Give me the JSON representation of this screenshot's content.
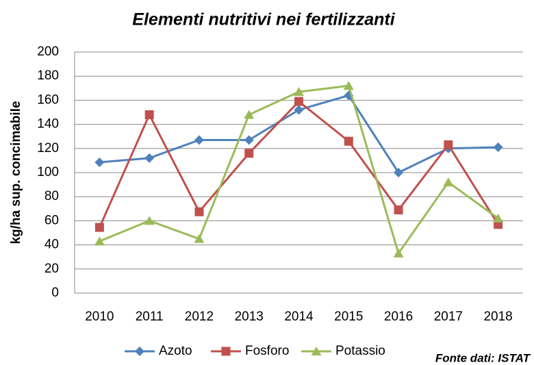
{
  "chart_data": {
    "type": "line",
    "title": "Elementi nutritivi nei fertilizzanti",
    "y_label": "kg/ha sup. concimabile",
    "annotation": "Fonte dati: ISTAT",
    "categories": [
      "2010",
      "2011",
      "2012",
      "2013",
      "2014",
      "2015",
      "2016",
      "2017",
      "2018"
    ],
    "series": [
      {
        "name": "Azoto",
        "color": "#4f81bd",
        "marker": "diamond",
        "values": [
          108.5,
          112,
          127,
          127,
          152,
          164,
          100,
          120,
          121
        ]
      },
      {
        "name": "Fosforo",
        "color": "#c0504d",
        "marker": "square",
        "values": [
          54.5,
          148,
          67.5,
          116,
          159,
          126,
          69,
          123,
          57
        ]
      },
      {
        "name": "Potassio",
        "color": "#9bbb59",
        "marker": "triangle",
        "values": [
          43,
          60,
          45,
          148,
          167,
          172,
          33,
          92,
          62
        ]
      }
    ],
    "ylim": [
      0,
      200
    ],
    "yticks": [
      0,
      20,
      40,
      60,
      80,
      100,
      120,
      140,
      160,
      180,
      200
    ],
    "grid": true,
    "legend": "bottom"
  }
}
